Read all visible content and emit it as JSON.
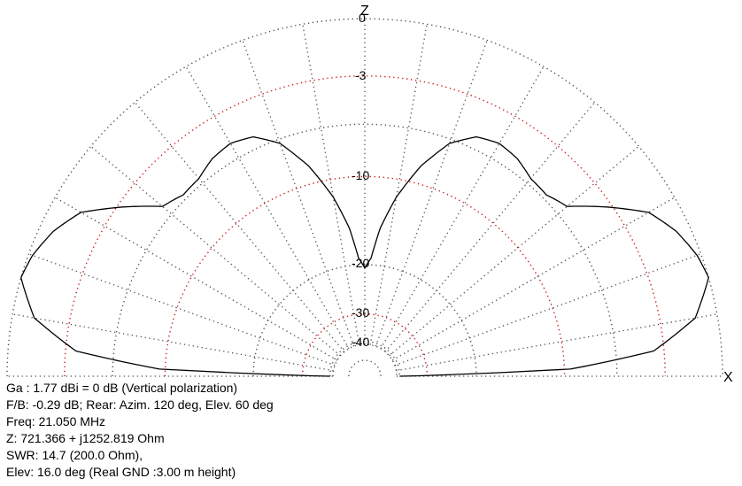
{
  "chart_data": {
    "type": "polar-elevation",
    "axis_labels": {
      "z": "Z",
      "x": "X"
    },
    "ring_labels": [
      "0",
      "-3",
      "-10",
      "-20",
      "-30",
      "-40"
    ],
    "ring_levels_db": [
      0,
      -3,
      -6,
      -10,
      -20,
      -30,
      -40
    ],
    "angle_grid_step_deg": 10,
    "colors": {
      "grid_gray": "#505050",
      "grid_red": "#d01010",
      "trace": "#000000"
    },
    "series": [
      {
        "points": [
          {
            "elev_deg": 0,
            "db": -40
          },
          {
            "elev_deg": 2,
            "db": -9.5
          },
          {
            "elev_deg": 5,
            "db": -3.6
          },
          {
            "elev_deg": 10,
            "db": -1.1
          },
          {
            "elev_deg": 16,
            "db": 0
          },
          {
            "elev_deg": 20,
            "db": -0.2
          },
          {
            "elev_deg": 25,
            "db": -0.7
          },
          {
            "elev_deg": 30,
            "db": -1.5
          },
          {
            "elev_deg": 35,
            "db": -3.3
          },
          {
            "elev_deg": 40,
            "db": -5.2
          },
          {
            "elev_deg": 45,
            "db": -5.7
          },
          {
            "elev_deg": 50,
            "db": -5.6
          },
          {
            "elev_deg": 55,
            "db": -5.1
          },
          {
            "elev_deg": 60,
            "db": -4.9
          },
          {
            "elev_deg": 65,
            "db": -5.2
          },
          {
            "elev_deg": 70,
            "db": -6.3
          },
          {
            "elev_deg": 75,
            "db": -8.5
          },
          {
            "elev_deg": 80,
            "db": -11.6
          },
          {
            "elev_deg": 84,
            "db": -15
          },
          {
            "elev_deg": 87,
            "db": -19
          },
          {
            "elev_deg": 90,
            "db": -20.5
          }
        ],
        "symmetric": true
      }
    ]
  },
  "info": {
    "line1": "Ga : 1.77 dBi = 0 dB  (Vertical polarization)",
    "line2": "F/B: -0.29 dB; Rear: Azim. 120 deg,  Elev. 60 deg",
    "line3": "Freq: 21.050 MHz",
    "line4": "Z: 721.366 + j1252.819 Ohm",
    "line5": "SWR: 14.7 (200.0 Ohm),",
    "line6": "Elev: 16.0 deg (Real GND  :3.00 m height)"
  }
}
